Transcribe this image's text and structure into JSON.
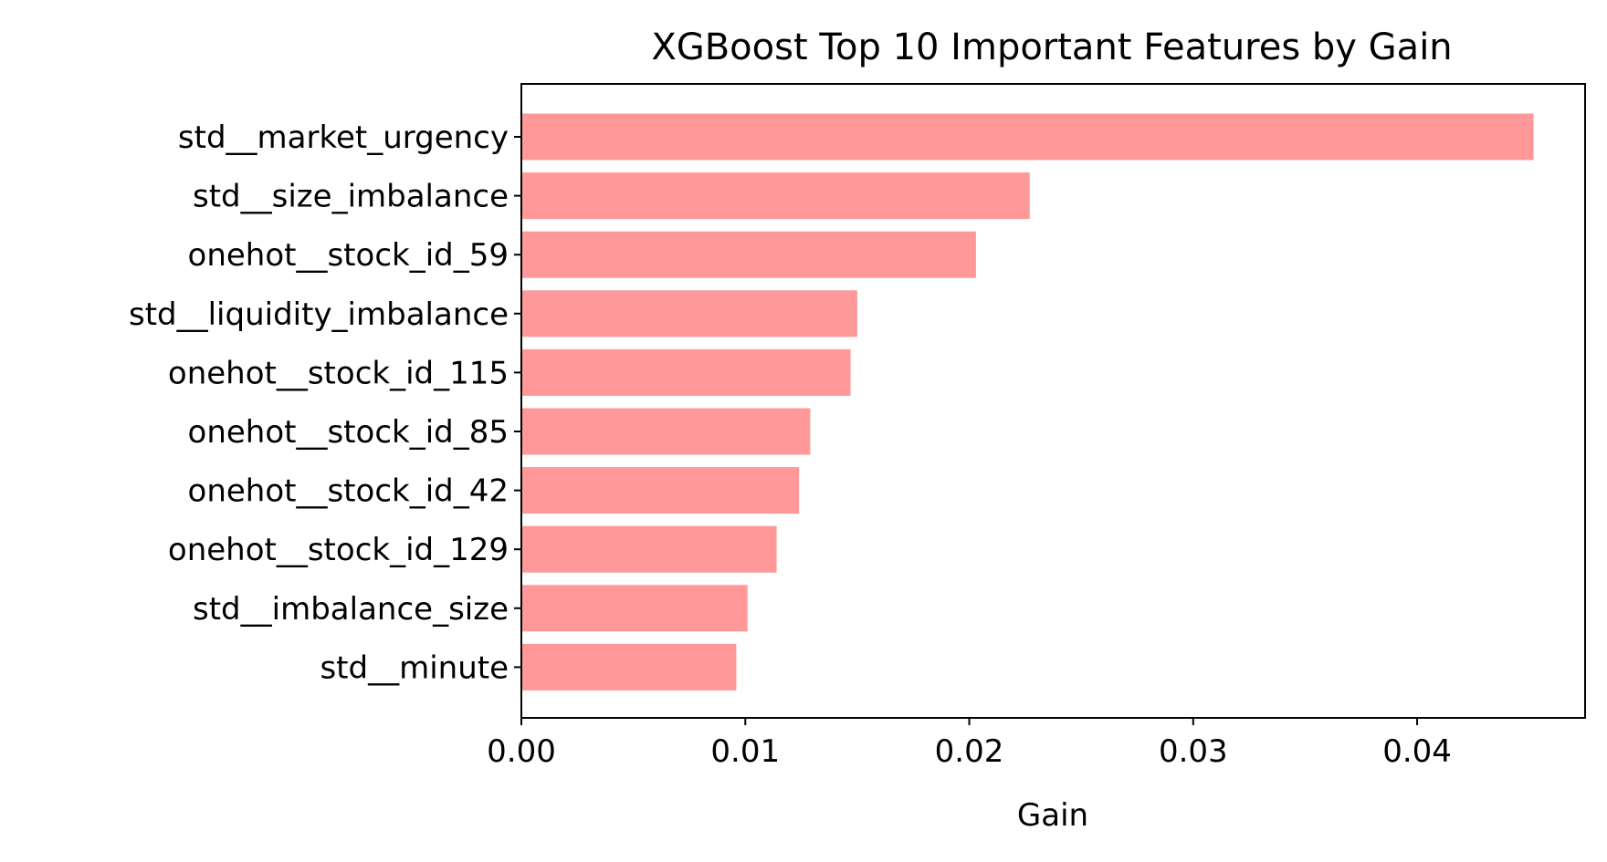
{
  "chart_data": {
    "type": "bar",
    "orientation": "horizontal",
    "title": "XGBoost Top 10 Important Features by Gain",
    "xlabel": "Gain",
    "ylabel": "",
    "categories": [
      "std__market_urgency",
      "std__size_imbalance",
      "onehot__stock_id_59",
      "std__liquidity_imbalance",
      "onehot__stock_id_115",
      "onehot__stock_id_85",
      "onehot__stock_id_42",
      "onehot__stock_id_129",
      "std__imbalance_size",
      "std__minute"
    ],
    "values": [
      0.0452,
      0.0227,
      0.0203,
      0.015,
      0.0147,
      0.0129,
      0.0124,
      0.0114,
      0.0101,
      0.0096
    ],
    "xlim": [
      0,
      0.0475
    ],
    "xticks": [
      "0.00",
      "0.01",
      "0.02",
      "0.03",
      "0.04"
    ],
    "bar_color": "#ff9999",
    "grid": false,
    "legend": "none"
  }
}
